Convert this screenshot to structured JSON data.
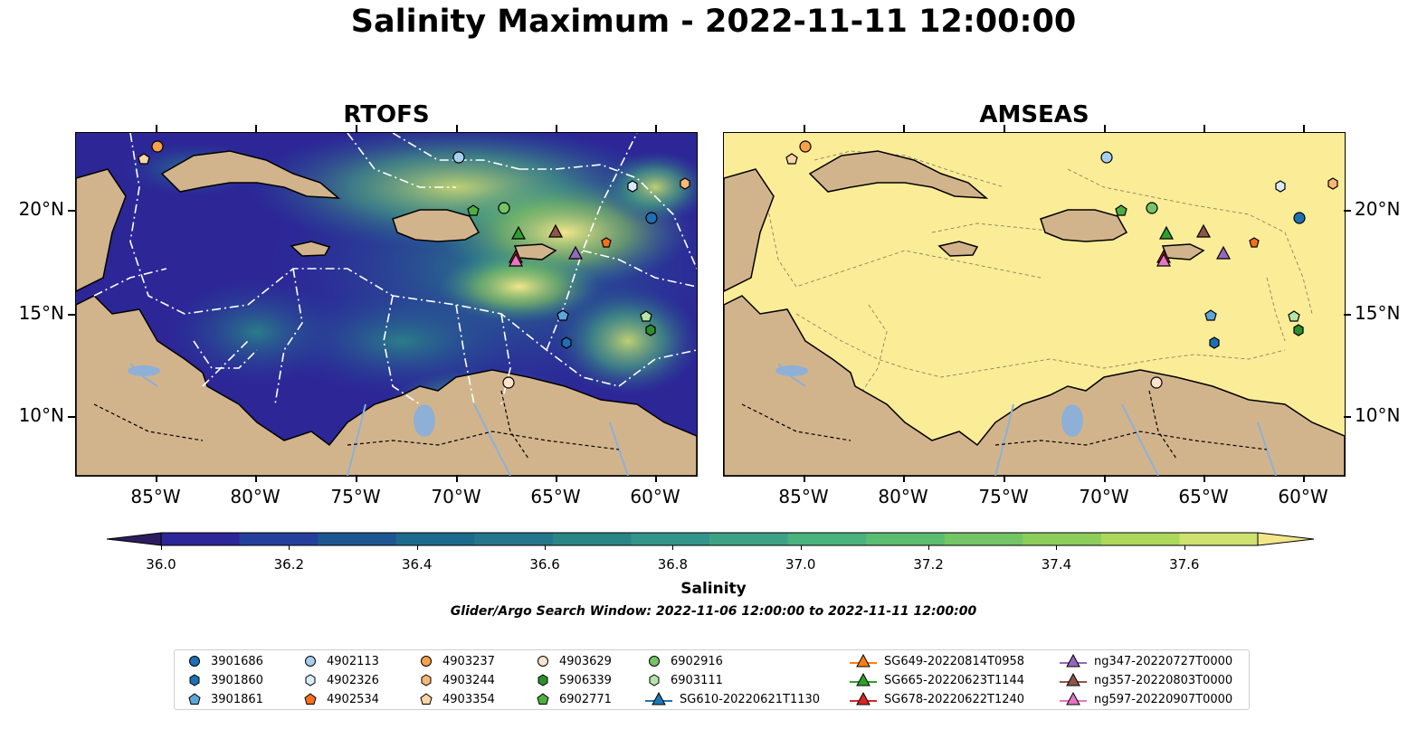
{
  "title": "Salinity Maximum - 2022-11-11 12:00:00",
  "panels": [
    {
      "title": "RTOFS",
      "background": "#2a2e7a"
    },
    {
      "title": "AMSEAS",
      "background": "#fbec98"
    }
  ],
  "x_tick_labels": [
    "85°W",
    "80°W",
    "75°W",
    "70°W",
    "65°W",
    "60°W"
  ],
  "y_tick_labels": [
    "20°N",
    "15°N",
    "10°N"
  ],
  "colorbar": {
    "label": "Salinity",
    "tick_labels": [
      "36.0",
      "36.2",
      "36.4",
      "36.6",
      "36.8",
      "37.0",
      "37.2",
      "37.4",
      "37.6"
    ],
    "colors": [
      "#2c1c5f",
      "#2d2697",
      "#24409c",
      "#1c5791",
      "#1e6a8c",
      "#24768a",
      "#2a8686",
      "#32948a",
      "#3ea386",
      "#4ab27d",
      "#5bbd70",
      "#74c565",
      "#8dce5a",
      "#acd95b",
      "#cfe16f",
      "#f3e68a"
    ]
  },
  "search_window": "Glider/Argo Search Window: 2022-11-06 12:00:00 to 2022-11-11 12:00:00",
  "legend": {
    "items": [
      {
        "label": "3901686",
        "marker": "circle",
        "color": "#1f6fb4"
      },
      {
        "label": "3901860",
        "marker": "hexagon",
        "color": "#1f6fb4"
      },
      {
        "label": "3901861",
        "marker": "pentagon",
        "color": "#5fa6d8"
      },
      {
        "label": "4902113",
        "marker": "circle",
        "color": "#a6cfee"
      },
      {
        "label": "4902326",
        "marker": "hexagon",
        "color": "#d8ebf9"
      },
      {
        "label": "4902534",
        "marker": "pentagon",
        "color": "#f2711c"
      },
      {
        "label": "4903237",
        "marker": "circle",
        "color": "#f7a14a"
      },
      {
        "label": "4903244",
        "marker": "hexagon",
        "color": "#fbb777"
      },
      {
        "label": "4903354",
        "marker": "pentagon",
        "color": "#fdd3a8"
      },
      {
        "label": "4903629",
        "marker": "circle",
        "color": "#fde2cd"
      },
      {
        "label": "5906339",
        "marker": "hexagon",
        "color": "#2c8e2c"
      },
      {
        "label": "6902771",
        "marker": "pentagon",
        "color": "#4fae43"
      },
      {
        "label": "6902916",
        "marker": "circle",
        "color": "#74c466"
      },
      {
        "label": "6903111",
        "marker": "hexagon",
        "color": "#b5e3a8"
      },
      {
        "label": "SG610-20220621T1130",
        "marker": "triangle-line",
        "color": "#1f77b4"
      },
      {
        "label": "SG649-20220814T0958",
        "marker": "triangle-line",
        "color": "#ff7f0e"
      },
      {
        "label": "SG665-20220623T1144",
        "marker": "triangle-line",
        "color": "#2ca02c"
      },
      {
        "label": "SG678-20220622T1240",
        "marker": "triangle-line",
        "color": "#d62728"
      },
      {
        "label": "ng347-20220727T0000",
        "marker": "triangle-line",
        "color": "#9467bd"
      },
      {
        "label": "ng357-20220803T0000",
        "marker": "triangle-line",
        "color": "#8c564b"
      },
      {
        "label": "ng597-20220907T0000",
        "marker": "triangle-line",
        "color": "#e377c2"
      }
    ]
  }
}
